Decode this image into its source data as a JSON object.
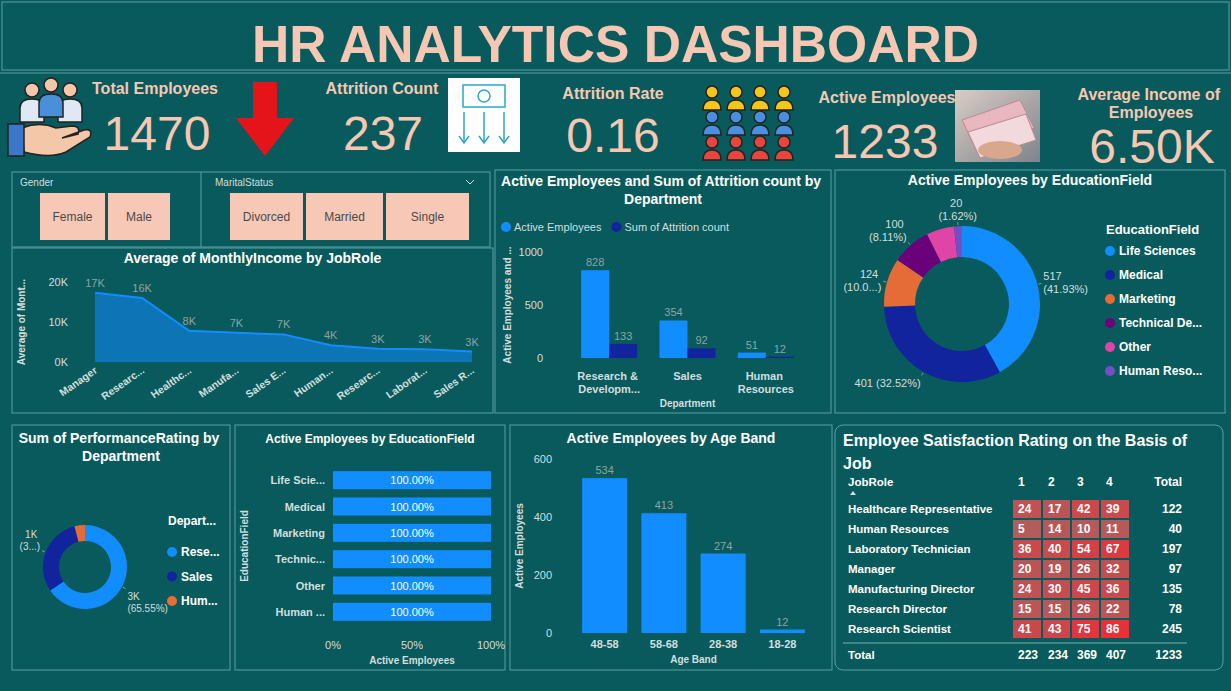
{
  "header": {
    "title": "HR ANALYTICS DASHBOARD"
  },
  "kpis": [
    {
      "label": "Total Employees",
      "value": 1470
    },
    {
      "label": "Attrition Count",
      "value": 237
    },
    {
      "label": "Attrition Rate",
      "value": 0.16
    },
    {
      "label": "Active Employees",
      "value": 1233
    },
    {
      "label": "Average Income of Employees",
      "value": "6.50K"
    }
  ],
  "slicers": [
    {
      "title": "Gender",
      "options": [
        "Female",
        "Male"
      ]
    },
    {
      "title": "MaritalStatus",
      "options": [
        "Divorced",
        "Married",
        "Single"
      ]
    }
  ],
  "chart_data": [
    {
      "type": "area",
      "title": "Average of MonthlyIncome by JobRole",
      "y_label": "Average of Mont...",
      "categories": [
        "Manager",
        "Researc...",
        "Healthc...",
        "Manufa...",
        "Sales E...",
        "Human...",
        "Researc...",
        "Laborat...",
        "Sales R..."
      ],
      "values": [
        17300,
        16000,
        7800,
        7300,
        6900,
        4200,
        3300,
        3200,
        2600
      ],
      "value_labels": [
        "17K",
        "16K",
        "8K",
        "7K",
        "7K",
        "4K",
        "3K",
        "3K",
        "3K"
      ],
      "color": "#118dff",
      "ylim": [
        0,
        20000
      ],
      "yticks": [
        {
          "value": 0,
          "label": "0K"
        },
        {
          "value": 10000,
          "label": "10K"
        },
        {
          "value": 20000,
          "label": "20K"
        }
      ],
      "data_labels": true,
      "grid": false
    },
    {
      "type": "bar",
      "title": "Active Employees and Sum of Attrition count by Department",
      "x_label": "Department",
      "y_label": "Active Employees and ...",
      "categories": [
        "Research & Developm...",
        "Sales",
        "Human Resources"
      ],
      "series": [
        {
          "name": "Active Employees",
          "color": "#118dff",
          "values": [
            828,
            354,
            51
          ]
        },
        {
          "name": "Sum of Attrition count",
          "color": "#12239e",
          "values": [
            133,
            92,
            12
          ]
        }
      ],
      "ylim": [
        0,
        1000
      ],
      "yticks": [
        0,
        500,
        1000
      ],
      "legend": "top",
      "data_labels": true,
      "grid": false
    },
    {
      "type": "donut",
      "title": "Active Employees by EducationField",
      "legend_title": "EducationField",
      "categories": [
        "Life Sciences",
        "Medical",
        "Marketing",
        "Technical De...",
        "Other",
        "Human Reso..."
      ],
      "values": [
        517,
        401,
        124,
        100,
        71,
        20
      ],
      "value_labels": [
        "517 (41.93%)",
        "401 (32.52%)",
        "124 (10.0...)",
        "100 (8.11%)",
        null,
        "20 (1.62%)"
      ],
      "colors": [
        "#118dff",
        "#12239e",
        "#e66c37",
        "#6b007b",
        "#e044a7",
        "#744ec2"
      ],
      "legend": "right",
      "data_labels": true
    },
    {
      "type": "donut",
      "title": "Sum of PerformanceRating by Department",
      "legend_title": "Depart...",
      "categories": [
        "Rese...",
        "Sales",
        "Hum..."
      ],
      "values": [
        3029,
        1406,
        186
      ],
      "value_labels": [
        "3K (65.55%)",
        "1K (3...)",
        null
      ],
      "colors": [
        "#118dff",
        "#12239e",
        "#e66c37"
      ],
      "legend": "right",
      "data_labels": true
    },
    {
      "type": "bar",
      "orientation": "horizontal",
      "title": "Active Employees by EducationField",
      "x_label": "Active Employees",
      "y_label": "EducationField",
      "categories": [
        "Life Scie...",
        "Medical",
        "Marketing",
        "Technic...",
        "Other",
        "Human ..."
      ],
      "values": [
        100,
        100,
        100,
        100,
        100,
        100
      ],
      "value_labels": [
        "100.00%",
        "100.00%",
        "100.00%",
        "100.00%",
        "100.00%",
        "100.00%"
      ],
      "color": "#118dff",
      "xlim": [
        0,
        100
      ],
      "xticks": [
        {
          "value": 0,
          "label": "0%"
        },
        {
          "value": 50,
          "label": "50%"
        },
        {
          "value": 100,
          "label": "100%"
        }
      ],
      "data_labels": true,
      "grid": false
    },
    {
      "type": "bar",
      "title": "Active Employees by Age Band",
      "x_label": "Age Band",
      "y_label": "Active Employees",
      "categories": [
        "48-58",
        "58-68",
        "28-38",
        "18-28"
      ],
      "values": [
        534,
        413,
        274,
        12
      ],
      "color": "#118dff",
      "ylim": [
        0,
        600
      ],
      "yticks": [
        0,
        200,
        400,
        600
      ],
      "data_labels": true,
      "grid": false
    }
  ],
  "matrix": {
    "title": "Employee Satisfaction Rating on the Basis of Job",
    "columns": [
      "JobRole",
      "1",
      "2",
      "3",
      "4",
      "Total"
    ],
    "rows": [
      [
        "Healthcare Representative",
        24,
        17,
        42,
        39,
        122
      ],
      [
        "Human Resources",
        5,
        14,
        10,
        11,
        40
      ],
      [
        "Laboratory Technician",
        36,
        40,
        54,
        67,
        197
      ],
      [
        "Manager",
        20,
        19,
        26,
        32,
        97
      ],
      [
        "Manufacturing Director",
        24,
        30,
        45,
        36,
        135
      ],
      [
        "Research Director",
        15,
        15,
        26,
        22,
        78
      ],
      [
        "Research Scientist",
        41,
        43,
        75,
        86,
        245
      ]
    ],
    "total": [
      "Total",
      223,
      234,
      369,
      407,
      1233
    ]
  }
}
